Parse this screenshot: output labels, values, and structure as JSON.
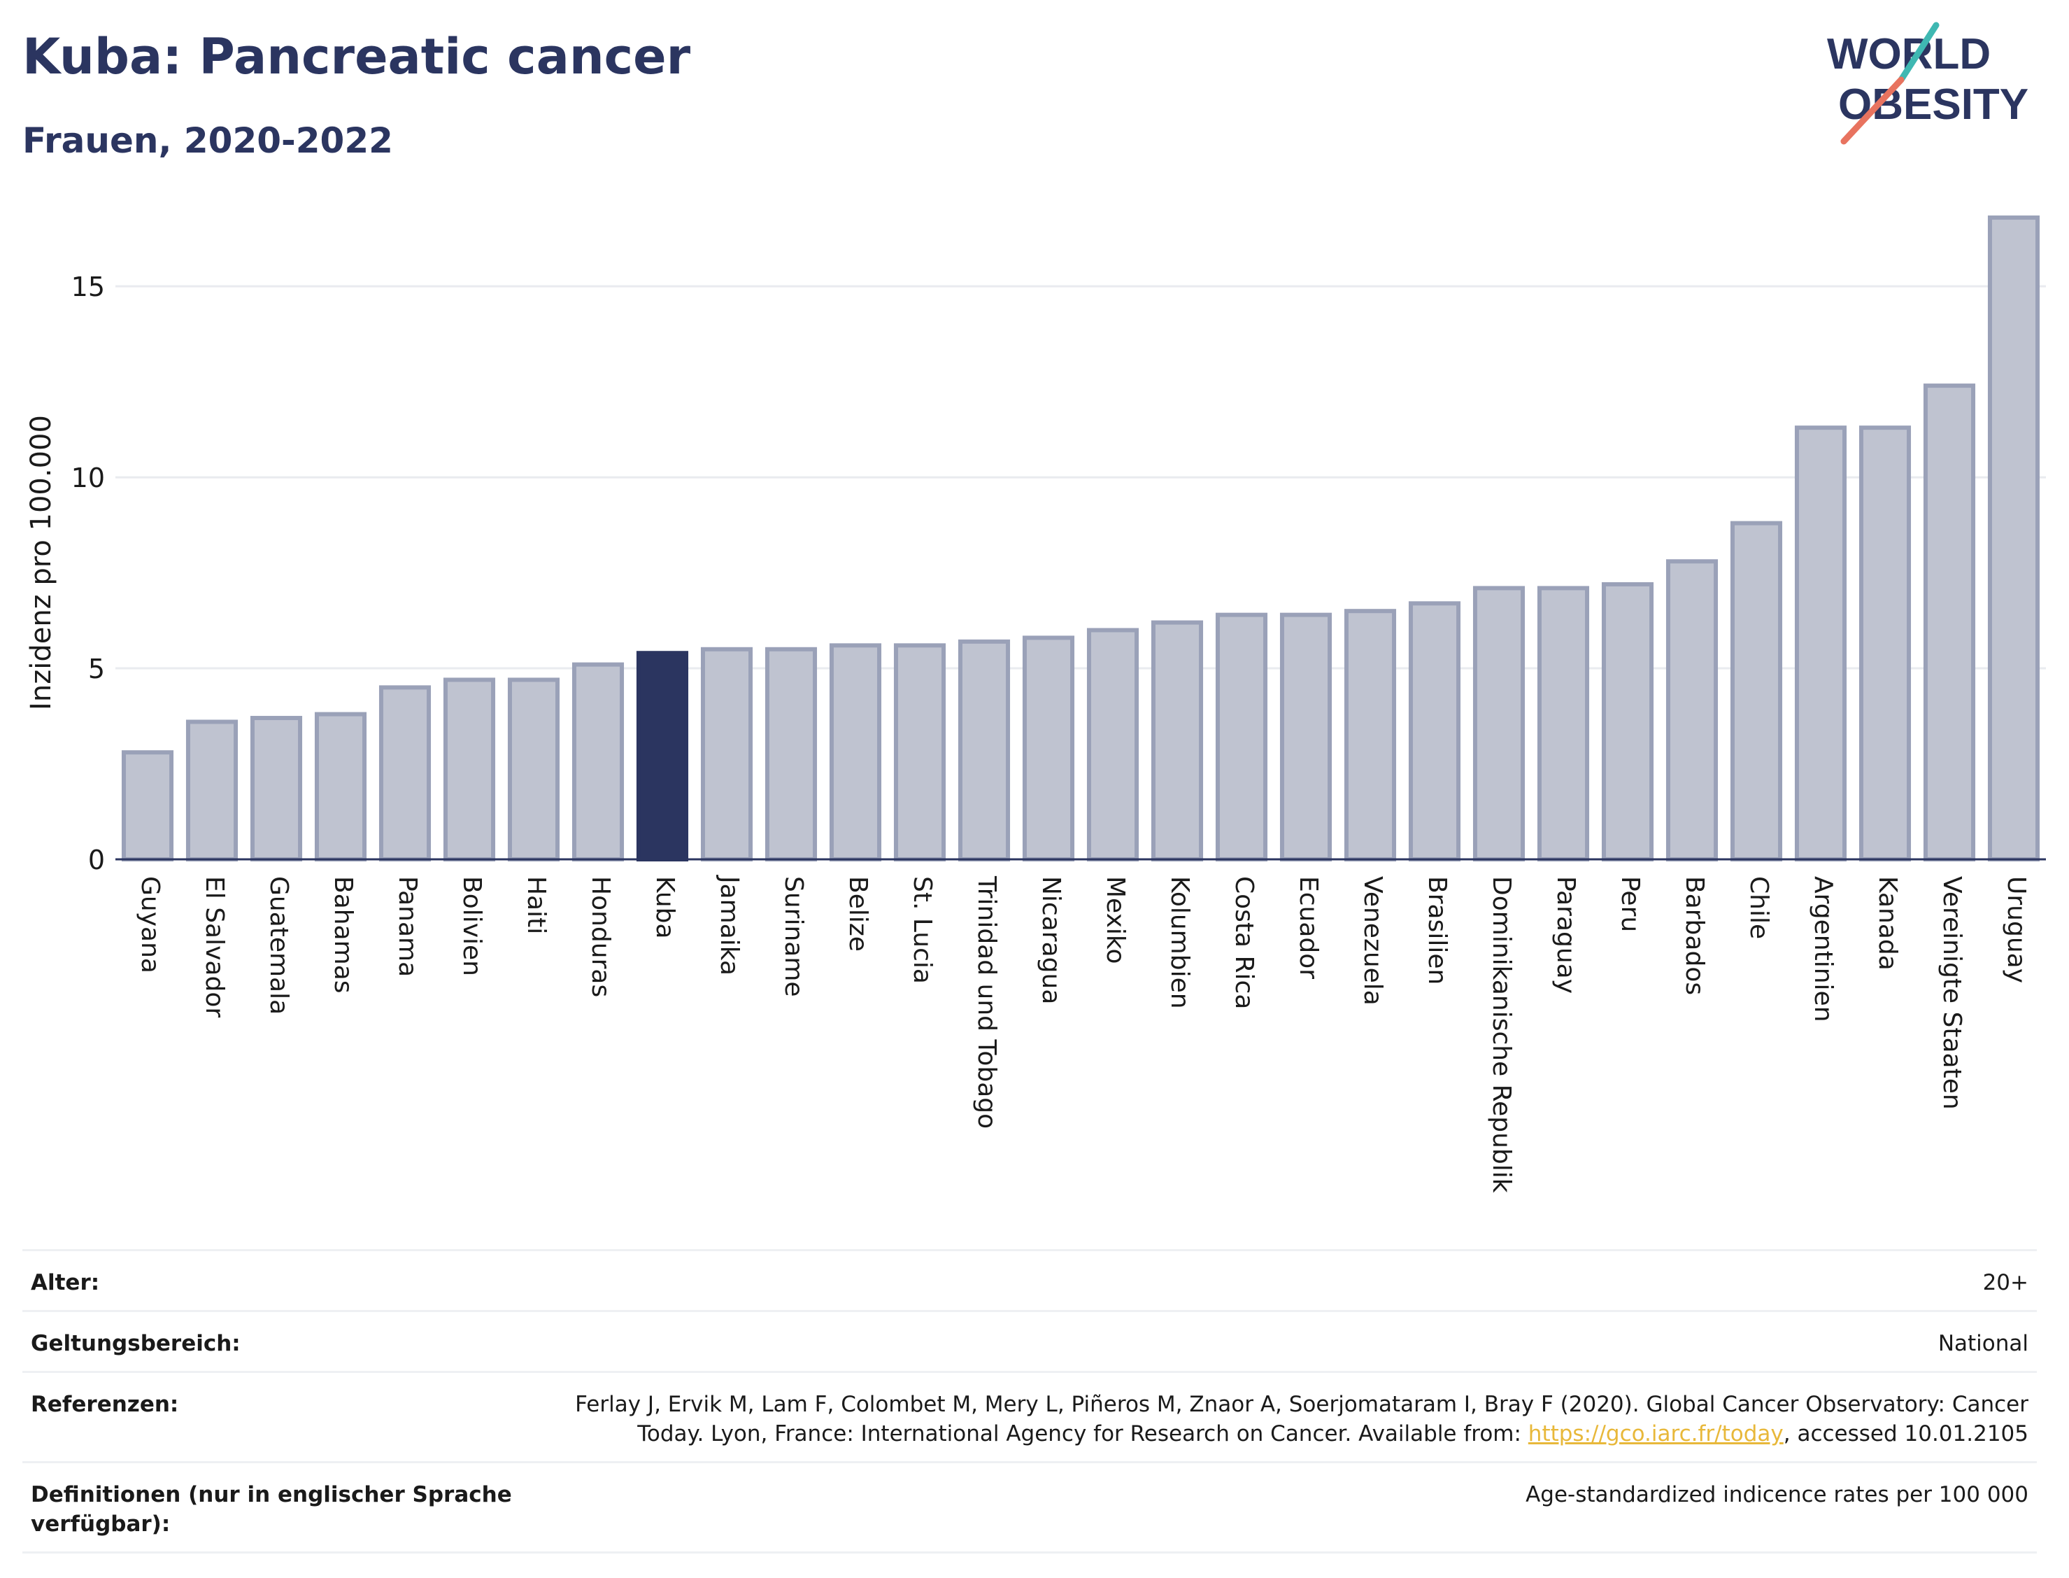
{
  "header": {
    "title": "Kuba: Pancreatic cancer",
    "subtitle": "Frauen, 2020-2022"
  },
  "logo": {
    "line1": "WORLD",
    "line2": "OBESITY",
    "slash_colors": [
      "#3fb8b2",
      "#e8735f"
    ],
    "text_color": "#2b3560"
  },
  "colors": {
    "bar": "#bfc3d0",
    "bar_stroke": "#9aa1b8",
    "highlight": "#2b3560",
    "grid": "#e9ebef",
    "axis": "#2b3560"
  },
  "chart_data": {
    "type": "bar",
    "ylabel": "Inzidenz pro 100.000",
    "xlabel": "",
    "ylim": [
      0,
      17
    ],
    "yticks": [
      0,
      5,
      10,
      15
    ],
    "grid": true,
    "highlight": "Kuba",
    "categories": [
      "Guyana",
      "El Salvador",
      "Guatemala",
      "Bahamas",
      "Panama",
      "Bolivien",
      "Haiti",
      "Honduras",
      "Kuba",
      "Jamaika",
      "Suriname",
      "Belize",
      "St. Lucia",
      "Trinidad und Tobago",
      "Nicaragua",
      "Mexiko",
      "Kolumbien",
      "Costa Rica",
      "Ecuador",
      "Venezuela",
      "Brasilien",
      "Dominikanische Republik",
      "Paraguay",
      "Peru",
      "Barbados",
      "Chile",
      "Argentinien",
      "Kanada",
      "Vereinigte Staaten",
      "Uruguay"
    ],
    "values": [
      2.8,
      3.6,
      3.7,
      3.8,
      4.5,
      4.7,
      4.7,
      5.1,
      5.4,
      5.5,
      5.5,
      5.6,
      5.6,
      5.7,
      5.8,
      6.0,
      6.2,
      6.4,
      6.4,
      6.5,
      6.7,
      7.1,
      7.1,
      7.2,
      7.8,
      8.8,
      11.3,
      11.3,
      12.4,
      16.8
    ]
  },
  "meta": [
    {
      "label": "Alter:",
      "value": "20+"
    },
    {
      "label": "Geltungsbereich:",
      "value": "National"
    },
    {
      "label": "Referenzen:",
      "value": "Ferlay J, Ervik M, Lam F, Colombet M, Mery L, Piñeros M, Znaor A, Soerjomataram I, Bray F (2020). Global Cancer Observatory: Cancer Today. Lyon, France: International Agency for Research on Cancer. Available from: ",
      "link": "https://gco.iarc.fr/today",
      "value_after": ", accessed 10.01.2105"
    },
    {
      "label": "Definitionen (nur in englischer Sprache verfügbar):",
      "value": "Age-standardized indicence rates per 100 000"
    }
  ]
}
